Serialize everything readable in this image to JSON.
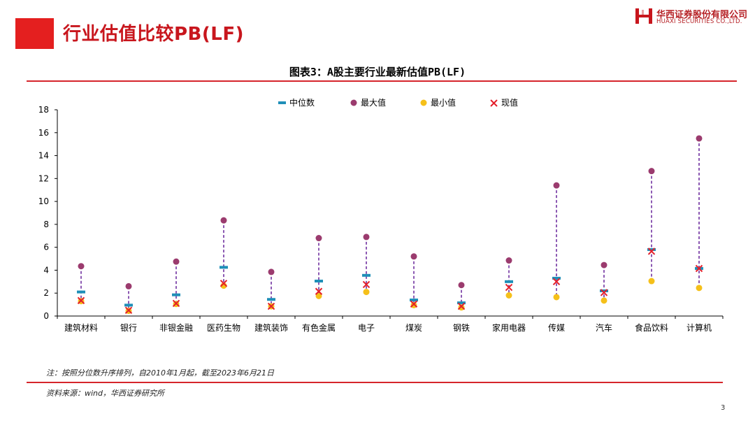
{
  "header": {
    "title": "行业估值比较PB(LF)",
    "logo_cn": "华西证券股份有限公司",
    "logo_en": "HUAXI SECURITIES CO.,LTD.",
    "brand_color": "#c8161d"
  },
  "figure": {
    "title": "图表3：A股主要行业最新估值PB(LF)"
  },
  "footer": {
    "note": "注：按照分位数升序排列，自2010年1月起，截至2023年6月21日",
    "source": "资料来源：wind，华西证券研究所",
    "page_number": "3"
  },
  "chart_data": {
    "type": "scatter",
    "title": "图表3：A股主要行业最新估值PB(LF)",
    "categories": [
      "建筑材料",
      "银行",
      "非银金融",
      "医药生物",
      "建筑装饰",
      "有色金属",
      "电子",
      "煤炭",
      "钢铁",
      "家用电器",
      "传媒",
      "汽车",
      "食品饮料",
      "计算机"
    ],
    "ylim": [
      0,
      18
    ],
    "yticks": [
      0,
      2,
      4,
      6,
      8,
      10,
      12,
      14,
      16,
      18
    ],
    "grid": false,
    "legend_position": "top",
    "series": [
      {
        "name": "中位数",
        "marker": "dash",
        "color": "#1f8fb8",
        "values": [
          2.1,
          0.95,
          1.85,
          4.25,
          1.45,
          3.05,
          3.55,
          1.4,
          1.15,
          3.0,
          3.3,
          2.2,
          5.8,
          4.15
        ]
      },
      {
        "name": "最大值",
        "marker": "circle",
        "color": "#9b3b6e",
        "values": [
          4.35,
          2.6,
          4.75,
          8.35,
          3.85,
          6.8,
          6.9,
          5.2,
          2.7,
          4.85,
          11.4,
          4.45,
          12.65,
          15.5
        ]
      },
      {
        "name": "最小值",
        "marker": "circle",
        "color": "#f5c01a",
        "values": [
          1.3,
          0.45,
          1.05,
          2.65,
          0.85,
          1.75,
          2.1,
          0.95,
          0.75,
          1.8,
          1.65,
          1.35,
          3.05,
          2.45
        ]
      },
      {
        "name": "现值",
        "marker": "x",
        "color": "#e41f2a",
        "values": [
          1.35,
          0.5,
          1.1,
          2.85,
          0.85,
          2.15,
          2.75,
          1.05,
          0.85,
          2.5,
          3.0,
          2.05,
          5.65,
          4.15
        ]
      }
    ],
    "range_line_color": "#7030a0"
  }
}
